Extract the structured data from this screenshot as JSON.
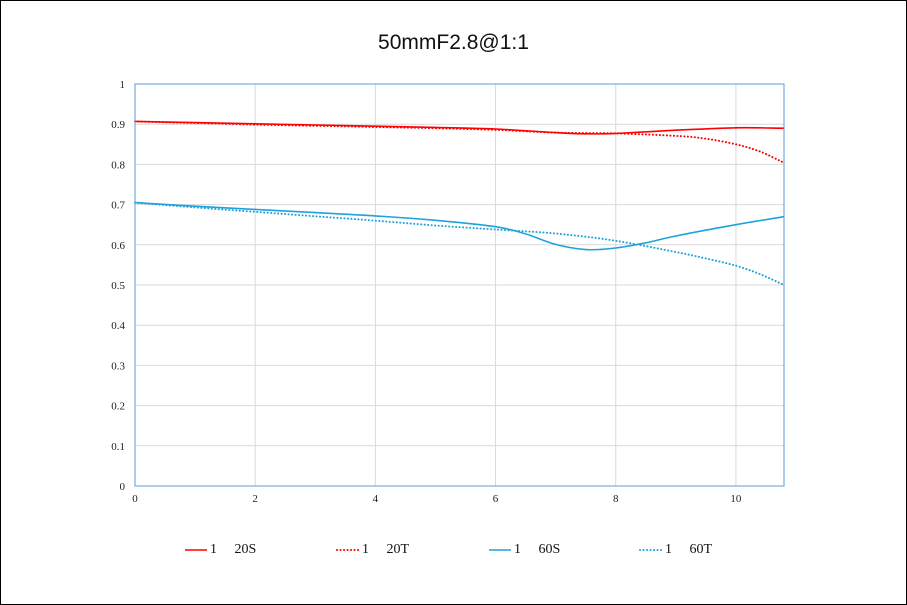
{
  "chart_data": {
    "type": "line",
    "title": "50mmF2.8@1:1",
    "xlim": [
      0,
      10.8
    ],
    "ylim": [
      0,
      1
    ],
    "x_ticks": [
      "0",
      "2",
      "4",
      "6",
      "8",
      "10"
    ],
    "y_ticks": [
      "0",
      "0.1",
      "0.2",
      "0.3",
      "0.4",
      "0.5",
      "0.6",
      "0.7",
      "0.8",
      "0.9",
      "1"
    ],
    "grid": true,
    "legend_position": "bottom",
    "series": [
      {
        "name": "1     20S",
        "color": "#ff0000",
        "style": "solid",
        "x": [
          0,
          1,
          2,
          3,
          4,
          5,
          6,
          7,
          7.5,
          8,
          9,
          10,
          10.8
        ],
        "y": [
          0.907,
          0.904,
          0.901,
          0.898,
          0.895,
          0.892,
          0.888,
          0.879,
          0.876,
          0.877,
          0.885,
          0.891,
          0.89
        ]
      },
      {
        "name": "1     20T",
        "color": "#ff0000",
        "style": "dotted",
        "x": [
          0,
          1,
          2,
          3,
          4,
          5,
          6,
          7,
          8,
          9,
          9.5,
          10,
          10.4,
          10.8
        ],
        "y": [
          0.907,
          0.903,
          0.899,
          0.896,
          0.893,
          0.89,
          0.886,
          0.879,
          0.877,
          0.871,
          0.864,
          0.85,
          0.832,
          0.804
        ]
      },
      {
        "name": "1     60S",
        "color": "#1fa2dc",
        "style": "solid",
        "x": [
          0,
          1,
          2,
          3,
          4,
          5,
          6,
          6.5,
          7,
          7.5,
          8,
          8.5,
          9,
          10,
          10.8
        ],
        "y": [
          0.705,
          0.696,
          0.688,
          0.68,
          0.672,
          0.661,
          0.645,
          0.627,
          0.601,
          0.588,
          0.592,
          0.605,
          0.622,
          0.65,
          0.67
        ]
      },
      {
        "name": "1     60T",
        "color": "#1fa2dc",
        "style": "dotted",
        "x": [
          0,
          1,
          2,
          3,
          4,
          5,
          6,
          7,
          8,
          9,
          9.5,
          10,
          10.4,
          10.8
        ],
        "y": [
          0.705,
          0.693,
          0.682,
          0.671,
          0.66,
          0.648,
          0.638,
          0.628,
          0.61,
          0.582,
          0.566,
          0.548,
          0.527,
          0.5
        ]
      }
    ]
  }
}
